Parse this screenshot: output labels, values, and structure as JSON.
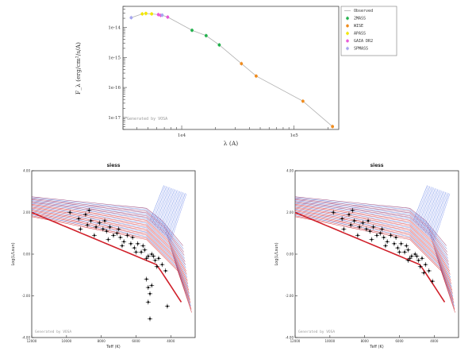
{
  "chart_data": [
    {
      "type": "scatter",
      "title": "",
      "xlabel": "λ (A)",
      "ylabel": "F_λ (erg/cm²/s/A)",
      "xscale": "log",
      "yscale": "log",
      "xlim": [
        3000,
        250000
      ],
      "ylim": [
        4e-18,
        5e-14
      ],
      "xticks": [
        {
          "value": 10000,
          "label": "1e4"
        },
        {
          "value": 100000,
          "label": "1e5"
        }
      ],
      "yticks": [
        {
          "value": 1e-14,
          "label": "1e-14"
        },
        {
          "value": 1e-15,
          "label": "1e-15"
        },
        {
          "value": 1e-16,
          "label": "1e-16"
        },
        {
          "value": 1e-17,
          "label": "1e-17"
        }
      ],
      "watermark": "Generated by VOSA",
      "legend_position": "outside-right",
      "legend": [
        {
          "name": "Observed",
          "color": "#b0b0b0",
          "marker": "line"
        },
        {
          "name": "2MASS",
          "color": "#22b14c",
          "marker": "point"
        },
        {
          "name": "WISE",
          "color": "#f08c1e",
          "marker": "point"
        },
        {
          "name": "APASS",
          "color": "#f2e600",
          "marker": "point"
        },
        {
          "name": "GAIA DR2",
          "color": "#e85bd8",
          "marker": "point"
        },
        {
          "name": "SPMASS",
          "color": "#a7a7ef",
          "marker": "point"
        }
      ],
      "observed_line": {
        "x": [
          3550,
          4450,
          4800,
          5400,
          6200,
          6500,
          6700,
          7500,
          12350,
          16500,
          21600,
          34000,
          46000,
          120000,
          220000
        ],
        "y": [
          2.1e-14,
          2.8e-14,
          2.9e-14,
          2.8e-14,
          2.65e-14,
          2.5e-14,
          2.55e-14,
          2.2e-14,
          8e-15,
          5.3e-15,
          2.6e-15,
          6.2e-16,
          2.4e-16,
          3.5e-17,
          5e-18
        ]
      },
      "series": [
        {
          "name": "APASS",
          "color": "#f2e600",
          "x": [
            4450,
            4800,
            5400
          ],
          "y": [
            2.8e-14,
            2.9e-14,
            2.8e-14
          ]
        },
        {
          "name": "GAIA DR2",
          "color": "#e85bd8",
          "x": [
            6200,
            6500,
            7500
          ],
          "y": [
            2.65e-14,
            2.5e-14,
            2.2e-14
          ]
        },
        {
          "name": "SPMASS",
          "color": "#a7a7ef",
          "x": [
            3550,
            6700
          ],
          "y": [
            2.1e-14,
            2.55e-14
          ]
        },
        {
          "name": "2MASS",
          "color": "#22b14c",
          "x": [
            12350,
            16500,
            21600
          ],
          "y": [
            8e-15,
            5.3e-15,
            2.6e-15
          ]
        },
        {
          "name": "WISE",
          "color": "#f08c1e",
          "x": [
            34000,
            46000,
            120000,
            220000
          ],
          "y": [
            6.2e-16,
            2.4e-16,
            3.5e-17,
            5e-18
          ]
        }
      ]
    },
    {
      "type": "scatter",
      "title": "siess",
      "xlabel": "Teff (K)",
      "ylabel": "Log(L/Lsun)",
      "xlim": [
        12000,
        2600
      ],
      "ylim": [
        -4,
        4
      ],
      "xticks": [
        {
          "value": 12000,
          "label": "12000"
        },
        {
          "value": 10000,
          "label": "10000"
        },
        {
          "value": 8000,
          "label": "8000"
        },
        {
          "value": 6000,
          "label": "6000"
        },
        {
          "value": 4000,
          "label": "4000"
        }
      ],
      "yticks": [
        {
          "value": 4,
          "label": "4.00"
        },
        {
          "value": 2,
          "label": "2.00"
        },
        {
          "value": 0,
          "label": "0.00"
        },
        {
          "value": -2,
          "label": "-2.00"
        },
        {
          "value": -4,
          "label": "-4.00"
        }
      ],
      "watermark": "Generated by VOSA",
      "isochrones": 22,
      "stars": {
        "teff": [
          9800,
          9300,
          8900,
          8800,
          8600,
          8300,
          8100,
          7900,
          7700,
          7500,
          7300,
          7100,
          6900,
          6700,
          6500,
          6300,
          6100,
          5900,
          5700,
          5500,
          5300,
          5100,
          4900,
          4700,
          4500,
          9200,
          8400,
          7600,
          6800,
          6000,
          5400,
          4800,
          8700,
          7800,
          7000,
          6200,
          5600,
          5000,
          4300,
          5400,
          5300,
          5200,
          5100,
          5300,
          5200,
          4200
        ],
        "logl": [
          2.0,
          1.7,
          1.9,
          1.4,
          1.6,
          1.3,
          1.5,
          1.2,
          1.1,
          1.3,
          0.9,
          1.0,
          0.8,
          0.6,
          0.9,
          0.5,
          0.3,
          0.5,
          0.1,
          0.2,
          -0.1,
          0.0,
          -0.3,
          -0.2,
          -0.5,
          1.2,
          0.9,
          0.7,
          0.4,
          0.1,
          -0.2,
          -0.6,
          2.1,
          1.6,
          1.2,
          0.8,
          0.4,
          -0.1,
          -0.8,
          -1.2,
          -1.6,
          -1.9,
          -1.5,
          -2.3,
          -3.1,
          -2.5
        ]
      }
    },
    {
      "type": "scatter",
      "title": "siess",
      "xlabel": "Teff (K)",
      "ylabel": "Log(L/Lsun)",
      "xlim": [
        12000,
        2600
      ],
      "ylim": [
        -4,
        4
      ],
      "xticks": [
        {
          "value": 12000,
          "label": "12000"
        },
        {
          "value": 10000,
          "label": "10000"
        },
        {
          "value": 8000,
          "label": "8000"
        },
        {
          "value": 6000,
          "label": "6000"
        },
        {
          "value": 4000,
          "label": "4000"
        }
      ],
      "yticks": [
        {
          "value": 4,
          "label": "4.00"
        },
        {
          "value": 2,
          "label": "2.00"
        },
        {
          "value": 0,
          "label": "0.00"
        },
        {
          "value": -2,
          "label": "-2.00"
        },
        {
          "value": -4,
          "label": "-4.00"
        }
      ],
      "watermark": "Generated by VOSA",
      "isochrones": 22,
      "stars": {
        "teff": [
          9800,
          9300,
          8900,
          8800,
          8600,
          8300,
          8100,
          7900,
          7700,
          7500,
          7300,
          7100,
          6900,
          6700,
          6500,
          6300,
          6100,
          5900,
          5700,
          5500,
          5300,
          5100,
          4900,
          4700,
          4500,
          9200,
          8400,
          7600,
          6800,
          6000,
          5400,
          4800,
          8700,
          7800,
          7000,
          6200,
          5600,
          5000,
          4300,
          5500,
          4600,
          4100
        ],
        "logl": [
          2.0,
          1.7,
          1.9,
          1.4,
          1.6,
          1.3,
          1.5,
          1.2,
          1.1,
          1.3,
          0.9,
          1.0,
          0.8,
          0.6,
          0.9,
          0.5,
          0.3,
          0.5,
          0.1,
          0.2,
          -0.1,
          0.0,
          -0.3,
          -0.2,
          -0.5,
          1.2,
          0.9,
          0.7,
          0.4,
          0.1,
          -0.2,
          -0.6,
          2.1,
          1.6,
          1.2,
          0.8,
          0.4,
          -0.1,
          -0.8,
          -0.3,
          -0.9,
          -1.3
        ]
      }
    }
  ]
}
